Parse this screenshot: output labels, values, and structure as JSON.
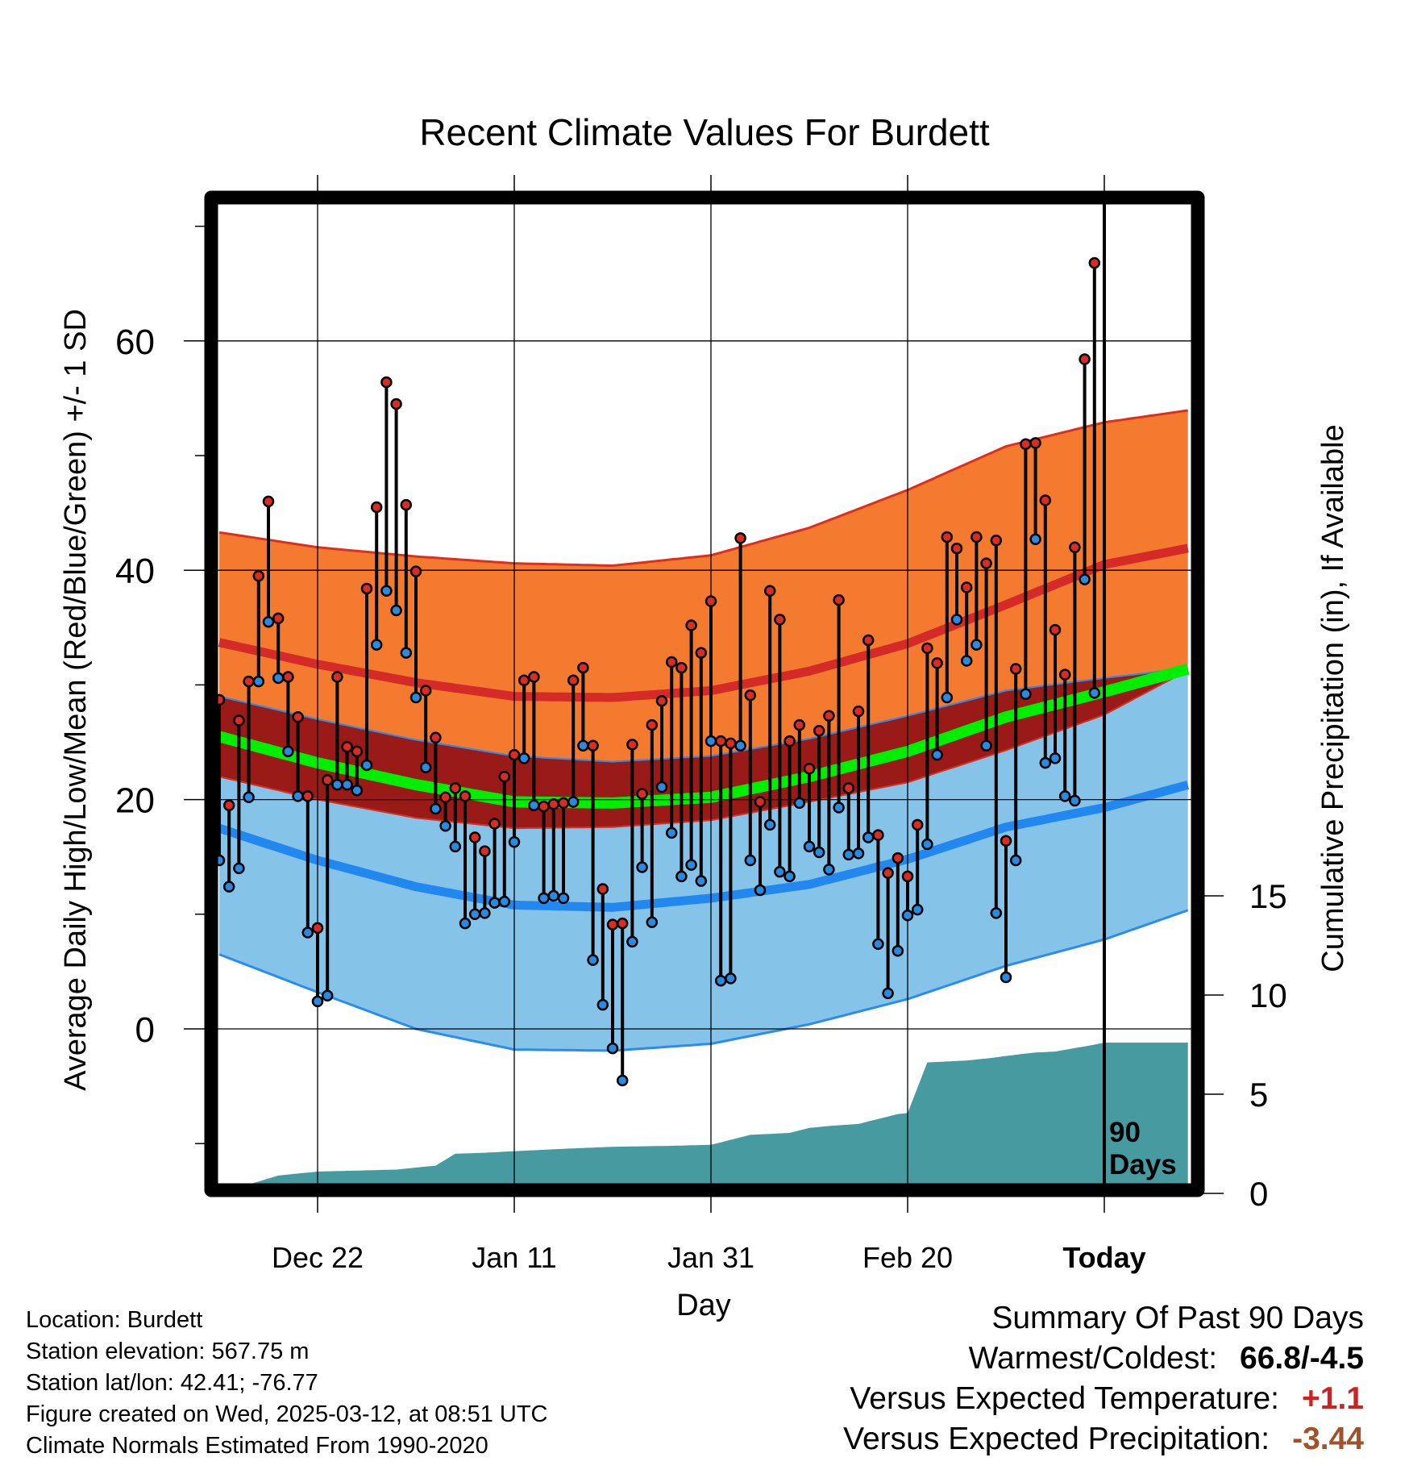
{
  "chart_data": {
    "type": "line",
    "title": "Recent Climate Values For Burdett",
    "xlabel": "Day",
    "ylabel": "Average Daily High/Low/Mean (Red/Blue/Green) +/- 1 SD",
    "y2label": "Cumulative Precipitation (in), If Available",
    "x_ticklabels": [
      "Dec 22",
      "Jan 11",
      "Jan 31",
      "Feb 20",
      "Today"
    ],
    "y_ticks": [
      0,
      20,
      40,
      60
    ],
    "y_lim": [
      -14,
      72
    ],
    "y2_ticks": [
      0,
      5,
      10,
      15
    ],
    "y2_lim": [
      0,
      50
    ],
    "x_range_days": [
      -100,
      0
    ],
    "grid": true,
    "today_marker": "90 Days",
    "colors": {
      "high_band": "#f47a30",
      "high_edge": "#d93020",
      "high_mean": "#d42a28",
      "overlap_band": "#9a1a18",
      "low_band": "#86c3e8",
      "low_edge": "#2a8bf0",
      "low_mean": "#2288f0",
      "mean_line": "#00ee00",
      "precip": "#469aa0",
      "high_dot": "#d82c24",
      "low_dot": "#2a8ae0",
      "temp_anomaly": "#cc2222",
      "precip_anomaly": "#a0522d"
    },
    "normals": {
      "day": [
        -100,
        -90,
        -80,
        -70,
        -60,
        -50,
        -40,
        -30,
        -20,
        -10,
        0,
        9
      ],
      "high_mean": [
        35,
        33.7,
        31.8,
        30.2,
        29,
        28.9,
        29.5,
        31.2,
        33.6,
        37,
        40.5,
        42
      ],
      "high_sd_upper": [
        45,
        43.3,
        42,
        41.2,
        40.6,
        40.4,
        41.3,
        43.7,
        47,
        50.8,
        52.9,
        54
      ],
      "low_mean": [
        20.4,
        17.5,
        14.7,
        12.4,
        10.8,
        10.6,
        11.4,
        12.6,
        14.8,
        17.6,
        19.3,
        21.4
      ],
      "low_sd_lower": [
        9,
        6.5,
        3.2,
        0,
        -1.8,
        -1.9,
        -1.3,
        0.4,
        2.6,
        5.5,
        7.8,
        10.5
      ],
      "mean": [
        27.2,
        25.5,
        23.2,
        21.3,
        19.8,
        19.7,
        20.2,
        22,
        24.2,
        27.2,
        29.4,
        31.5
      ],
      "band_top": [
        30.3,
        29,
        27,
        25.2,
        23.8,
        23.3,
        23.8,
        25.3,
        27.3,
        29.5,
        30.6,
        31.5
      ],
      "band_bottom": [
        24,
        22,
        20,
        18.4,
        17.5,
        17.6,
        18.2,
        19.8,
        21.5,
        24.3,
        27.4,
        31.5
      ]
    },
    "series": [
      {
        "name": "High",
        "values": [
          28.7,
          19.5,
          26.9,
          30.3,
          39.5,
          46.0,
          35.8,
          30.7,
          27.2,
          20.3,
          8.8,
          21.7,
          30.7,
          24.6,
          24.2,
          38.4,
          45.5,
          56.4,
          54.5,
          45.7,
          39.9,
          29.5,
          25.4,
          20.2,
          21.0,
          20.3,
          16.7,
          15.5,
          17.9,
          22.0,
          23.9,
          30.4,
          30.7,
          19.4,
          19.6,
          19.7,
          30.4,
          31.5,
          24.7,
          12.2,
          9.1,
          9.2,
          24.8,
          20.5,
          26.5,
          28.6,
          32.0,
          31.5,
          35.2,
          32.8,
          37.3,
          25.1,
          24.9,
          42.8,
          29.1,
          19.8,
          38.2,
          35.7,
          25.1,
          26.5,
          22.7,
          26.0,
          27.3,
          37.4,
          21.0,
          27.7,
          33.9,
          16.9,
          13.6,
          14.9,
          13.3,
          17.8,
          33.2,
          31.9,
          42.9,
          41.9,
          38.5,
          42.9,
          40.6,
          42.6,
          16.4,
          31.4,
          51.0,
          51.1,
          46.1,
          34.8,
          30.9,
          42.0,
          58.4,
          66.8
        ]
      },
      {
        "name": "Low",
        "values": [
          14.7,
          12.4,
          14.0,
          20.2,
          30.3,
          35.5,
          30.6,
          24.2,
          20.3,
          8.4,
          2.4,
          2.9,
          21.3,
          21.3,
          20.8,
          23.0,
          33.5,
          38.2,
          36.5,
          32.8,
          28.9,
          22.8,
          19.2,
          17.7,
          15.9,
          9.2,
          10.0,
          10.1,
          11.0,
          11.1,
          16.3,
          23.6,
          19.5,
          11.4,
          11.6,
          11.4,
          19.8,
          24.7,
          6.0,
          2.1,
          -1.7,
          -4.5,
          7.6,
          14.1,
          9.3,
          21.1,
          17.1,
          13.3,
          14.3,
          12.9,
          25.1,
          4.2,
          4.4,
          24.7,
          14.7,
          12.1,
          17.8,
          13.7,
          13.3,
          19.7,
          15.9,
          15.4,
          13.9,
          19.3,
          15.2,
          15.3,
          16.7,
          7.4,
          3.1,
          6.8,
          9.9,
          10.4,
          16.1,
          23.9,
          28.9,
          35.7,
          32.1,
          33.5,
          24.7,
          10.1,
          4.5,
          14.7,
          29.2,
          42.7,
          23.2,
          23.6,
          20.3,
          19.9,
          39.2,
          29.3
        ]
      }
    ],
    "precip_cumulative": {
      "day": [
        -100,
        -90,
        -84,
        -80,
        -72,
        -68,
        -66,
        -63,
        -55,
        -50,
        -44,
        -40,
        -36,
        -32,
        -30,
        -28,
        -25,
        -21,
        -20,
        -18,
        -14,
        -13,
        -12,
        -8,
        -7,
        -5,
        -1,
        0,
        9
      ],
      "value": [
        0,
        0,
        0.9,
        1.1,
        1.2,
        1.4,
        2.0,
        2.05,
        2.25,
        2.35,
        2.4,
        2.45,
        2.95,
        3.05,
        3.3,
        3.4,
        3.5,
        4.0,
        4.05,
        6.6,
        6.7,
        6.75,
        6.8,
        7.05,
        7.1,
        7.15,
        7.5,
        7.6,
        7.6
      ]
    }
  },
  "footer": {
    "location": "Location: Burdett",
    "elevation": "Station elevation: 567.75 m",
    "latlon": "Station lat/lon: 42.41; -76.77",
    "created": "Figure created on Wed, 2025-03-12, at 08:51 UTC",
    "normals": "Climate Normals Estimated From 1990-2020"
  },
  "summary": {
    "heading": "Summary Of Past 90 Days",
    "warmest_label": "Warmest/Coldest:",
    "warmest_value": "66.8/-4.5",
    "temp_label": "Versus Expected Temperature:",
    "temp_value": "+1.1",
    "precip_label": "Versus Expected Precipitation:",
    "precip_value": "-3.44"
  }
}
